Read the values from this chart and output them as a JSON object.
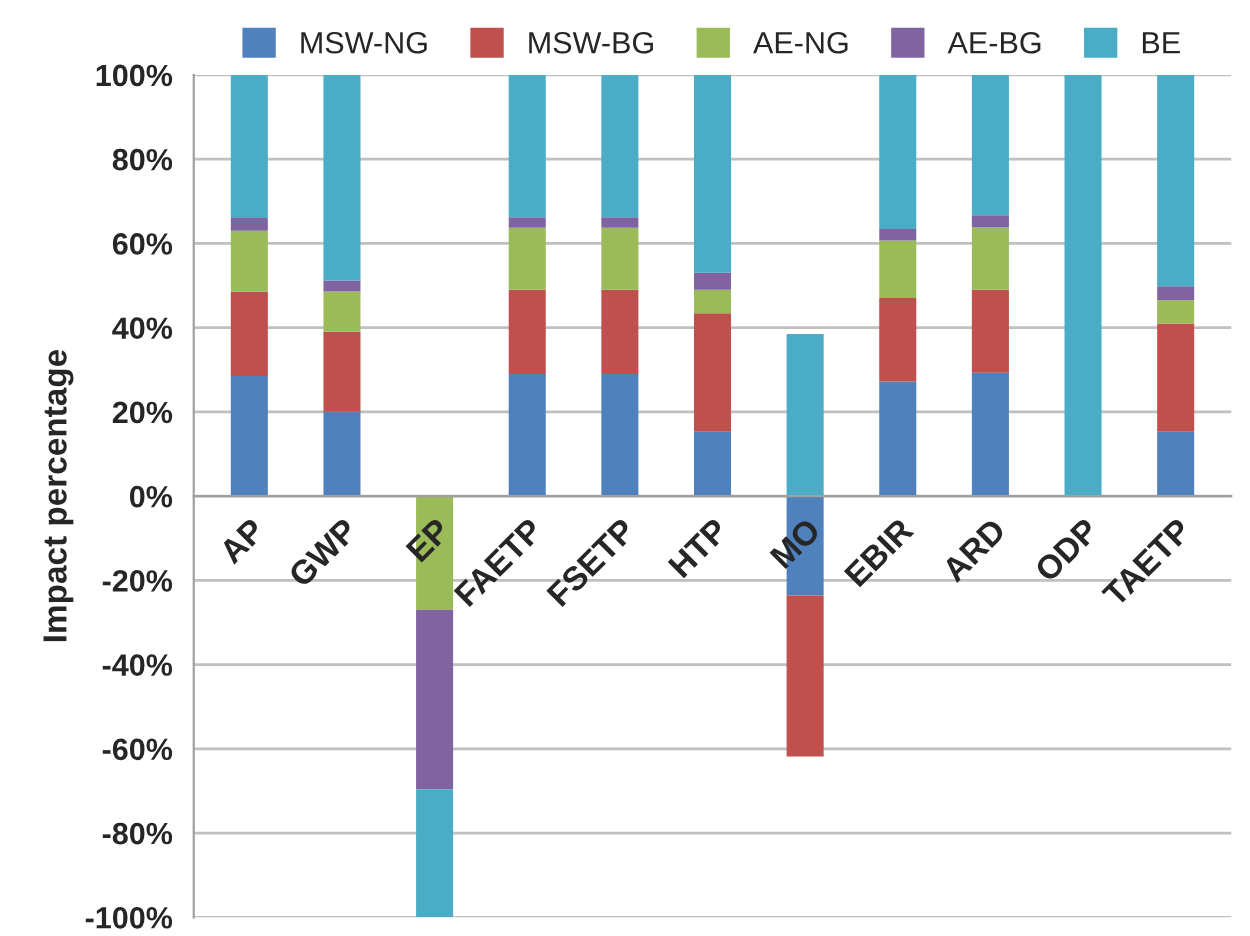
{
  "chart_data": {
    "type": "bar",
    "stacked": true,
    "ylabel": "Impact percentage",
    "categories": [
      "AP",
      "GWP",
      "EP",
      "FAETP",
      "FSETP",
      "HTP",
      "MO",
      "EBIR",
      "ARD",
      "ODP",
      "TAETP"
    ],
    "series": [
      {
        "name": "MSW-NG",
        "color": "#4f81bd",
        "values": [
          28.5,
          20,
          0,
          29,
          29,
          15.3,
          -23.6,
          27.2,
          29.3,
          0,
          15.3
        ]
      },
      {
        "name": "MSW-BG",
        "color": "#c0504d",
        "values": [
          20,
          19,
          0,
          20,
          20,
          28.1,
          -38.2,
          19.8,
          19.7,
          0,
          25.7
        ]
      },
      {
        "name": "AE-NG",
        "color": "#9bbb59",
        "values": [
          14.5,
          9.6,
          -27,
          14.7,
          14.7,
          5.6,
          0,
          13.7,
          14.9,
          0,
          5.5
        ]
      },
      {
        "name": "AE-BG",
        "color": "#8064a2",
        "values": [
          3,
          2.6,
          -42.6,
          2.5,
          2.5,
          4,
          0,
          2.7,
          2.8,
          0,
          3.3
        ]
      },
      {
        "name": "BE",
        "color": "#4bacc6",
        "values": [
          34,
          48.8,
          -30.4,
          33.8,
          33.8,
          47,
          38.5,
          36.6,
          33.3,
          100,
          50.2
        ]
      }
    ],
    "ylim": [
      -100,
      100
    ],
    "yticks": [
      {
        "value": -100,
        "label": "-100%"
      },
      {
        "value": -80,
        "label": "-80%"
      },
      {
        "value": -60,
        "label": "-60%"
      },
      {
        "value": -40,
        "label": "-40%"
      },
      {
        "value": -20,
        "label": "-20%"
      },
      {
        "value": 0,
        "label": "0%"
      },
      {
        "value": 20,
        "label": "20%"
      },
      {
        "value": 40,
        "label": "40%"
      },
      {
        "value": 60,
        "label": "60%"
      },
      {
        "value": 80,
        "label": "80%"
      },
      {
        "value": 100,
        "label": "100%"
      }
    ],
    "grid": "y",
    "legend": "top"
  }
}
